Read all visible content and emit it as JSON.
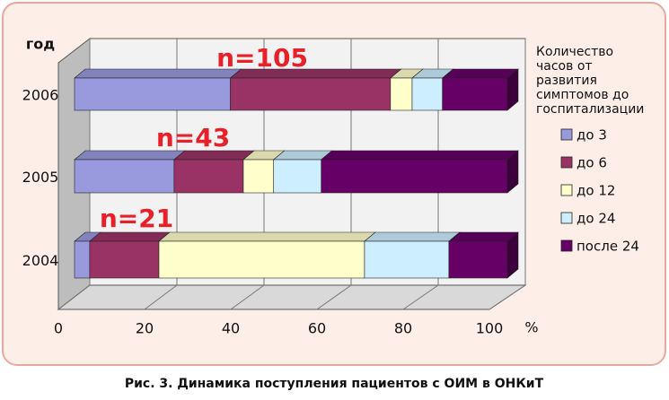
{
  "chart_data": {
    "type": "bar",
    "orientation": "horizontal",
    "stacked": true,
    "y_label": "год",
    "x_label": "%",
    "categories": [
      "2006",
      "2005",
      "2004"
    ],
    "annotations": [
      "n=105",
      "n=43",
      "n=21"
    ],
    "legend_title": [
      "Количество",
      "часов от",
      "развития",
      "симптомов до",
      "госпитализации"
    ],
    "series": [
      {
        "name": "до 3",
        "color": "#9999dd",
        "values": [
          36,
          23,
          3.5
        ]
      },
      {
        "name": "до 6",
        "color": "#993366",
        "values": [
          37,
          16,
          16
        ]
      },
      {
        "name": "до 12",
        "color": "#ffffcc",
        "values": [
          5,
          7,
          47.5
        ]
      },
      {
        "name": "до 24",
        "color": "#cceeff",
        "values": [
          7,
          11,
          19.5
        ]
      },
      {
        "name": "после 24",
        "color": "#660066",
        "values": [
          15,
          43,
          13.5
        ]
      }
    ],
    "xlim": [
      0,
      100
    ],
    "xticks": [
      0,
      20,
      40,
      60,
      80,
      100
    ],
    "grid": true,
    "legend": "right",
    "caption": "Рис. 3. Динамика поступления пациентов с ОИМ в ОНКиТ"
  }
}
